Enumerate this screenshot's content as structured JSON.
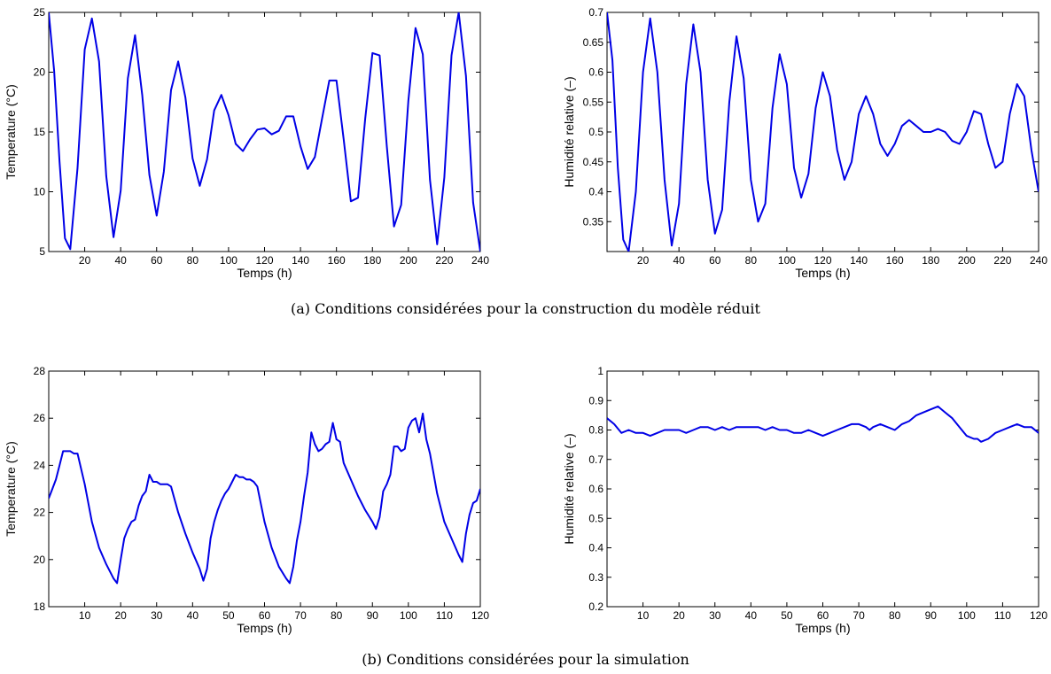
{
  "captions": {
    "a": "(a) Conditions considérées pour la construction du modèle réduit",
    "b": "(b) Conditions considérées pour la simulation"
  },
  "line_color": "#0000e6",
  "chart_data": [
    {
      "id": "a_temp",
      "type": "line",
      "xlabel": "Temps (h)",
      "ylabel": "Temperature (°C)",
      "xlim": [
        0,
        240
      ],
      "ylim": [
        5,
        25
      ],
      "xticks": [
        20,
        40,
        60,
        80,
        100,
        120,
        140,
        160,
        180,
        200,
        220,
        240
      ],
      "yticks": [
        5,
        10,
        15,
        20,
        25
      ],
      "grid": false,
      "series": [
        {
          "x": [
            0,
            3,
            6,
            9,
            12,
            16,
            20,
            24,
            28,
            32,
            36,
            40,
            44,
            48,
            52,
            56,
            60,
            64,
            68,
            72,
            76,
            80,
            84,
            88,
            92,
            96,
            100,
            104,
            108,
            112,
            116,
            120,
            124,
            128,
            132,
            136,
            140,
            144,
            148,
            152,
            156,
            160,
            164,
            168,
            172,
            176,
            180,
            184,
            188,
            192,
            196,
            200,
            204,
            208,
            212,
            216,
            220,
            224,
            228,
            232,
            236,
            240
          ],
          "y": [
            25,
            20.1,
            12.5,
            6.1,
            5.2,
            12.0,
            21.9,
            24.5,
            20.9,
            11.3,
            6.2,
            10.1,
            19.5,
            23.1,
            18.1,
            11.4,
            8.0,
            11.7,
            18.5,
            20.9,
            17.9,
            12.8,
            10.5,
            12.7,
            16.8,
            18.1,
            16.4,
            14.0,
            13.4,
            14.4,
            15.2,
            15.3,
            14.8,
            15.1,
            16.3,
            16.3,
            13.8,
            11.9,
            12.9,
            16.1,
            19.3,
            19.3,
            14.4,
            9.2,
            9.5,
            16.1,
            21.6,
            21.4,
            13.8,
            7.1,
            8.9,
            17.6,
            23.7,
            21.5,
            11.0,
            5.6,
            11.2,
            21.4,
            25.0,
            19.7,
            9.1,
            5.0
          ]
        }
      ]
    },
    {
      "id": "a_hum",
      "type": "line",
      "xlabel": "Temps (h)",
      "ylabel": "Humidité relative (–)",
      "xlim": [
        0,
        240
      ],
      "ylim": [
        0.3,
        0.7
      ],
      "xticks": [
        20,
        40,
        60,
        80,
        100,
        120,
        140,
        160,
        180,
        200,
        220,
        240
      ],
      "yticks": [
        0.35,
        0.4,
        0.45,
        0.5,
        0.55,
        0.6,
        0.65,
        0.7
      ],
      "grid": false,
      "series": [
        {
          "x": [
            0,
            3,
            6,
            9,
            12,
            16,
            20,
            24,
            28,
            32,
            36,
            40,
            44,
            48,
            52,
            56,
            60,
            64,
            68,
            72,
            76,
            80,
            84,
            88,
            92,
            96,
            100,
            104,
            108,
            112,
            116,
            120,
            124,
            128,
            132,
            136,
            140,
            144,
            148,
            152,
            156,
            160,
            164,
            168,
            172,
            176,
            180,
            184,
            188,
            192,
            196,
            200,
            204,
            208,
            212,
            216,
            220,
            224,
            228,
            232,
            236,
            240
          ],
          "y": [
            0.7,
            0.62,
            0.44,
            0.32,
            0.3,
            0.4,
            0.6,
            0.69,
            0.6,
            0.42,
            0.31,
            0.38,
            0.58,
            0.68,
            0.6,
            0.42,
            0.33,
            0.37,
            0.55,
            0.66,
            0.59,
            0.42,
            0.35,
            0.38,
            0.54,
            0.63,
            0.58,
            0.44,
            0.39,
            0.43,
            0.54,
            0.6,
            0.56,
            0.47,
            0.42,
            0.45,
            0.53,
            0.56,
            0.53,
            0.48,
            0.46,
            0.48,
            0.51,
            0.52,
            0.51,
            0.5,
            0.5,
            0.505,
            0.5,
            0.485,
            0.48,
            0.5,
            0.535,
            0.53,
            0.48,
            0.44,
            0.45,
            0.53,
            0.58,
            0.56,
            0.47,
            0.4
          ]
        }
      ]
    },
    {
      "id": "b_temp",
      "type": "line",
      "xlabel": "Temps (h)",
      "ylabel": "Temperature (°C)",
      "xlim": [
        0,
        120
      ],
      "ylim": [
        18,
        28
      ],
      "xticks": [
        10,
        20,
        30,
        40,
        50,
        60,
        70,
        80,
        90,
        100,
        110,
        120
      ],
      "yticks": [
        18,
        20,
        22,
        24,
        26,
        28
      ],
      "grid": false,
      "series": [
        {
          "x": [
            0,
            1,
            2,
            3,
            4,
            5,
            6,
            7,
            8,
            10,
            12,
            14,
            16,
            18,
            19,
            20,
            21,
            22,
            23,
            24,
            25,
            26,
            27,
            28,
            29,
            30,
            31,
            32,
            33,
            34,
            36,
            38,
            40,
            42,
            43,
            44,
            45,
            46,
            47,
            48,
            49,
            50,
            51,
            52,
            53,
            54,
            55,
            56,
            57,
            58,
            60,
            62,
            64,
            66,
            67,
            68,
            69,
            70,
            71,
            72,
            73,
            74,
            75,
            76,
            77,
            78,
            79,
            80,
            81,
            82,
            84,
            86,
            88,
            90,
            91,
            92,
            93,
            94,
            95,
            96,
            97,
            98,
            99,
            100,
            101,
            102,
            103,
            104,
            105,
            106,
            108,
            110,
            112,
            114,
            115,
            116,
            117,
            118,
            119,
            120
          ],
          "y": [
            22.6,
            23.0,
            23.4,
            24.0,
            24.6,
            24.6,
            24.6,
            24.5,
            24.5,
            23.2,
            21.6,
            20.5,
            19.8,
            19.2,
            19.0,
            20.0,
            20.9,
            21.3,
            21.6,
            21.7,
            22.3,
            22.7,
            22.9,
            23.6,
            23.3,
            23.3,
            23.2,
            23.2,
            23.2,
            23.1,
            22.0,
            21.1,
            20.3,
            19.6,
            19.1,
            19.6,
            20.9,
            21.6,
            22.1,
            22.5,
            22.8,
            23.0,
            23.3,
            23.6,
            23.5,
            23.5,
            23.4,
            23.4,
            23.3,
            23.1,
            21.6,
            20.5,
            19.7,
            19.2,
            19.0,
            19.7,
            20.8,
            21.6,
            22.7,
            23.7,
            25.4,
            24.9,
            24.6,
            24.7,
            24.9,
            25.0,
            25.8,
            25.1,
            25.0,
            24.1,
            23.4,
            22.7,
            22.1,
            21.6,
            21.3,
            21.8,
            22.9,
            23.2,
            23.6,
            24.8,
            24.8,
            24.6,
            24.7,
            25.6,
            25.9,
            26.0,
            25.4,
            26.2,
            25.1,
            24.5,
            22.8,
            21.6,
            20.9,
            20.2,
            19.9,
            21.1,
            21.9,
            22.4,
            22.5,
            23.0
          ]
        }
      ]
    },
    {
      "id": "b_hum",
      "type": "line",
      "xlabel": "Temps (h)",
      "ylabel": "Humidité relative (–)",
      "xlim": [
        0,
        120
      ],
      "ylim": [
        0.2,
        1.0
      ],
      "xticks": [
        10,
        20,
        30,
        40,
        50,
        60,
        70,
        80,
        90,
        100,
        110,
        120
      ],
      "yticks": [
        0.2,
        0.3,
        0.4,
        0.5,
        0.6,
        0.7,
        0.8,
        0.9,
        1
      ],
      "grid": false,
      "series": [
        {
          "x": [
            0,
            2,
            4,
            6,
            8,
            10,
            12,
            14,
            16,
            18,
            20,
            22,
            24,
            26,
            28,
            30,
            32,
            34,
            36,
            38,
            40,
            42,
            44,
            46,
            48,
            50,
            52,
            54,
            56,
            58,
            60,
            62,
            64,
            66,
            68,
            70,
            72,
            73,
            74,
            76,
            78,
            80,
            82,
            84,
            86,
            88,
            90,
            92,
            94,
            96,
            98,
            100,
            102,
            103,
            104,
            106,
            108,
            110,
            112,
            114,
            116,
            118,
            120
          ],
          "y": [
            0.84,
            0.82,
            0.79,
            0.8,
            0.79,
            0.79,
            0.78,
            0.79,
            0.8,
            0.8,
            0.8,
            0.79,
            0.8,
            0.81,
            0.81,
            0.8,
            0.81,
            0.8,
            0.81,
            0.81,
            0.81,
            0.81,
            0.8,
            0.81,
            0.8,
            0.8,
            0.79,
            0.79,
            0.8,
            0.79,
            0.78,
            0.79,
            0.8,
            0.81,
            0.82,
            0.82,
            0.81,
            0.8,
            0.81,
            0.82,
            0.81,
            0.8,
            0.82,
            0.83,
            0.85,
            0.86,
            0.87,
            0.88,
            0.86,
            0.84,
            0.81,
            0.78,
            0.77,
            0.77,
            0.76,
            0.77,
            0.79,
            0.8,
            0.81,
            0.82,
            0.81,
            0.81,
            0.79
          ]
        }
      ]
    }
  ]
}
